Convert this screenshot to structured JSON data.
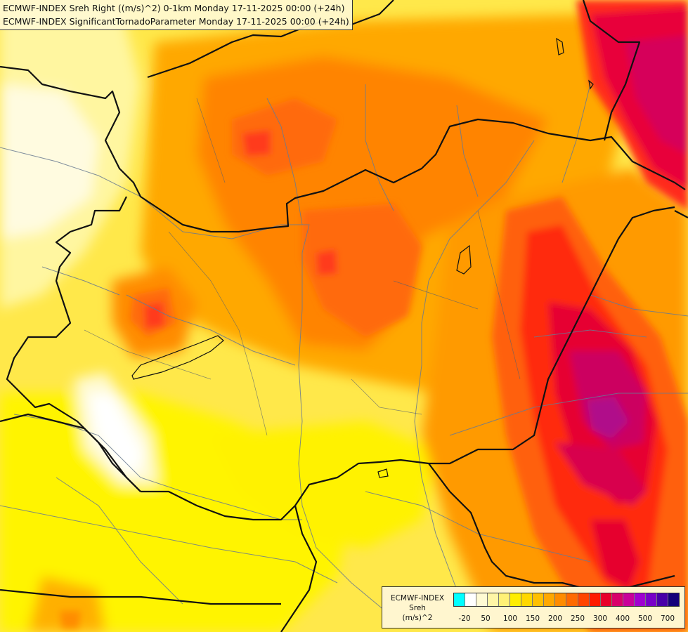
{
  "header": {
    "title_line1": "ECMWF-INDEX Sreh Right ((m/s)^2) 0-1km Monday 17-11-2025 00:00 (+24h)",
    "title_line2": "ECMWF-INDEX SignificantTornadoParameter Monday 17-11-2025 00:00 (+24h)"
  },
  "legend": {
    "model": "ECMWF-INDEX",
    "variable": "Sreh",
    "unit": "(m/s)^2",
    "colors": [
      "#00ffff",
      "#ffffff",
      "#fffbd4",
      "#fff6a6",
      "#fff176",
      "#ffee00",
      "#ffd800",
      "#ffc000",
      "#ffa800",
      "#ff8c00",
      "#ff6a00",
      "#ff4400",
      "#ff1a00",
      "#e8002a",
      "#d8006a",
      "#c8009a",
      "#a000d0",
      "#7800c8",
      "#4800a8",
      "#14007a"
    ],
    "ticks": [
      "-20",
      "50",
      "100",
      "150",
      "200",
      "250",
      "300",
      "400",
      "500",
      "700"
    ]
  },
  "map_colors": {
    "yellow_light": "#fff7b0",
    "yellow": "#fff200",
    "yellow_orange": "#ffd000",
    "orange_light": "#ffb000",
    "orange": "#ff9000",
    "orange_red": "#ff6a10",
    "red": "#ff3a1a",
    "crimson": "#e8003a",
    "magenta": "#d0005a",
    "purple": "#b0108a"
  }
}
